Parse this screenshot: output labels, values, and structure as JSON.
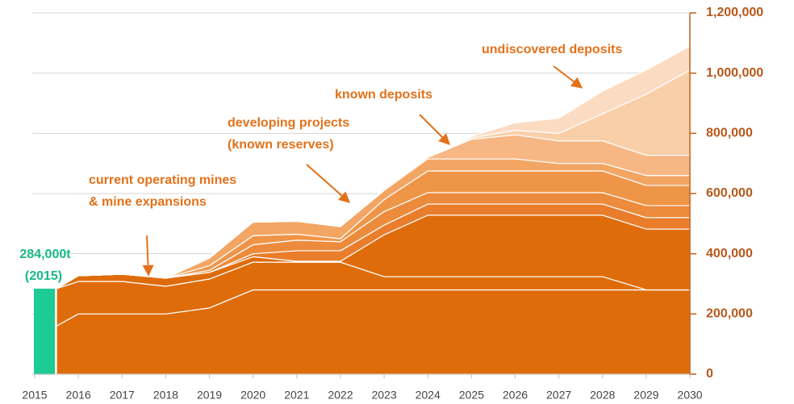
{
  "chart_data": {
    "type": "stacked_area",
    "annotations": [
      {
        "lines": [
          "current operating mines",
          "& mine expansions"
        ]
      },
      {
        "lines": [
          "developing projects",
          "(known reserves)"
        ]
      },
      {
        "lines": [
          "known deposits"
        ]
      },
      {
        "lines": [
          "undiscovered deposits"
        ]
      }
    ],
    "bar": {
      "x": 2015,
      "value": 284000,
      "color": "#1ecb94",
      "label": "284,000t",
      "sublabel": "(2015)"
    },
    "x": [
      2015.5,
      2016,
      2017,
      2018,
      2019,
      2020,
      2021,
      2022,
      2023,
      2024,
      2025,
      2026,
      2027,
      2028,
      2029,
      2030
    ],
    "series": [
      {
        "color": "#df6c0b",
        "values": [
          160000,
          200000,
          200000,
          200000,
          220000,
          280000,
          280000,
          280000,
          280000,
          280000,
          280000,
          280000,
          280000,
          280000,
          280000,
          280000
        ]
      },
      {
        "color": "#df6c0b",
        "values": [
          124000,
          108000,
          108000,
          92000,
          96000,
          92000,
          92000,
          92000,
          44000,
          44000,
          44000,
          44000,
          44000,
          44000,
          0,
          0
        ]
      },
      {
        "color": "#df6c0b",
        "values": [
          0,
          19000,
          24000,
          27000,
          22000,
          18000,
          3000,
          3000,
          139000,
          204000,
          204000,
          204000,
          204000,
          204000,
          202000,
          202000
        ]
      },
      {
        "color": "#e97d2c",
        "values": [
          0,
          0,
          0,
          0,
          0,
          10000,
          35000,
          35000,
          32000,
          37000,
          37000,
          37000,
          37000,
          37000,
          38000,
          38000
        ]
      },
      {
        "color": "#ec8b3c",
        "values": [
          0,
          0,
          0,
          0,
          7000,
          30000,
          35000,
          30000,
          45000,
          38000,
          38000,
          38000,
          38000,
          38000,
          40000,
          40000
        ]
      },
      {
        "color": "#ef9548",
        "values": [
          0,
          0,
          0,
          0,
          15000,
          30000,
          20000,
          10000,
          40000,
          72000,
          72000,
          72000,
          72000,
          72000,
          67000,
          67000
        ]
      },
      {
        "color": "#f3a563",
        "values": [
          0,
          0,
          0,
          0,
          25000,
          45000,
          43000,
          40000,
          30000,
          40000,
          40000,
          40000,
          25000,
          25000,
          33000,
          33000
        ]
      },
      {
        "color": "#f6b784",
        "values": [
          0,
          0,
          0,
          0,
          5000,
          0,
          0,
          0,
          5000,
          5000,
          65000,
          80000,
          75000,
          75000,
          67000,
          67000
        ]
      },
      {
        "color": "#f9cfa9",
        "values": [
          0,
          0,
          0,
          0,
          0,
          0,
          0,
          0,
          0,
          0,
          5000,
          15000,
          25000,
          90000,
          203000,
          283000
        ]
      },
      {
        "color": "#fbdcc3",
        "values": [
          0,
          0,
          0,
          0,
          0,
          0,
          0,
          0,
          0,
          0,
          5000,
          25000,
          50000,
          75000,
          80000,
          80000
        ]
      }
    ],
    "xlim": [
      2015,
      2030
    ],
    "xticks": [
      2015,
      2016,
      2017,
      2018,
      2019,
      2020,
      2021,
      2022,
      2023,
      2024,
      2025,
      2026,
      2027,
      2028,
      2029,
      2030
    ],
    "ylim": [
      0,
      1200000
    ],
    "yticks": [
      0,
      {
        "value": 200000,
        "label": "200,000"
      },
      {
        "value": 400000,
        "label": "400,000"
      },
      {
        "value": 600000,
        "label": "600,000"
      },
      {
        "value": 800000,
        "label": "800,000"
      },
      {
        "value": 1000000,
        "label": "1,000,000"
      },
      {
        "value": 1200000,
        "label": "1,200,000"
      }
    ],
    "grid": true
  }
}
